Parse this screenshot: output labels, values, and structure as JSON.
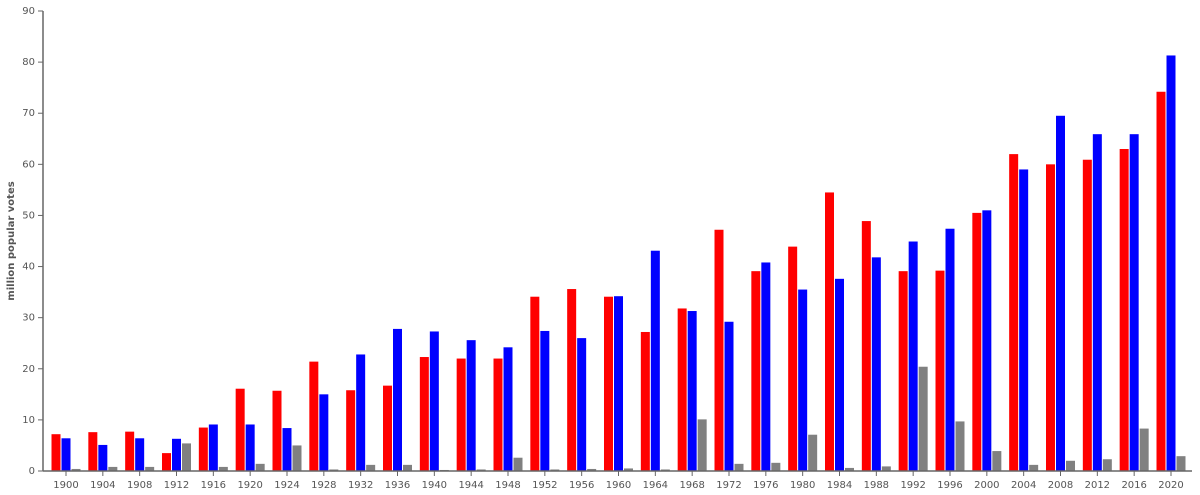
{
  "chart_data": {
    "type": "bar",
    "y_label": "million popular votes",
    "categories": [
      "1900",
      "1904",
      "1908",
      "1912",
      "1916",
      "1920",
      "1924",
      "1928",
      "1932",
      "1936",
      "1940",
      "1944",
      "1948",
      "1952",
      "1956",
      "1960",
      "1964",
      "1968",
      "1972",
      "1976",
      "1980",
      "1984",
      "1988",
      "1992",
      "1996",
      "2000",
      "2004",
      "2008",
      "2012",
      "2016",
      "2020"
    ],
    "series": [
      {
        "color": "#ff0000",
        "values": [
          7.2,
          7.6,
          7.7,
          3.5,
          8.5,
          16.1,
          15.7,
          21.4,
          15.8,
          16.7,
          22.3,
          22.0,
          22.0,
          34.1,
          35.6,
          34.1,
          27.2,
          31.8,
          47.2,
          39.1,
          43.9,
          54.5,
          48.9,
          39.1,
          39.2,
          50.5,
          62.0,
          60.0,
          60.9,
          63.0,
          74.2
        ]
      },
      {
        "color": "#0000ff",
        "values": [
          6.4,
          5.1,
          6.4,
          6.3,
          9.1,
          9.1,
          8.4,
          15.0,
          22.8,
          27.8,
          27.3,
          25.6,
          24.2,
          27.4,
          26.0,
          34.2,
          43.1,
          31.3,
          29.2,
          40.8,
          35.5,
          37.6,
          41.8,
          44.9,
          47.4,
          51.0,
          59.0,
          69.5,
          65.9,
          65.9,
          81.3
        ]
      },
      {
        "color": "#808080",
        "values": [
          0.4,
          0.8,
          0.8,
          5.4,
          0.8,
          1.4,
          5.0,
          0.3,
          1.2,
          1.2,
          0.2,
          0.3,
          2.6,
          0.3,
          0.4,
          0.5,
          0.3,
          10.1,
          1.4,
          1.6,
          7.1,
          0.6,
          0.9,
          20.4,
          9.7,
          3.9,
          1.2,
          2.0,
          2.3,
          8.3,
          2.9
        ]
      }
    ],
    "ylim": [
      0,
      90
    ],
    "yticks": [
      0,
      10,
      20,
      30,
      40,
      50,
      60,
      70,
      80,
      90
    ]
  }
}
